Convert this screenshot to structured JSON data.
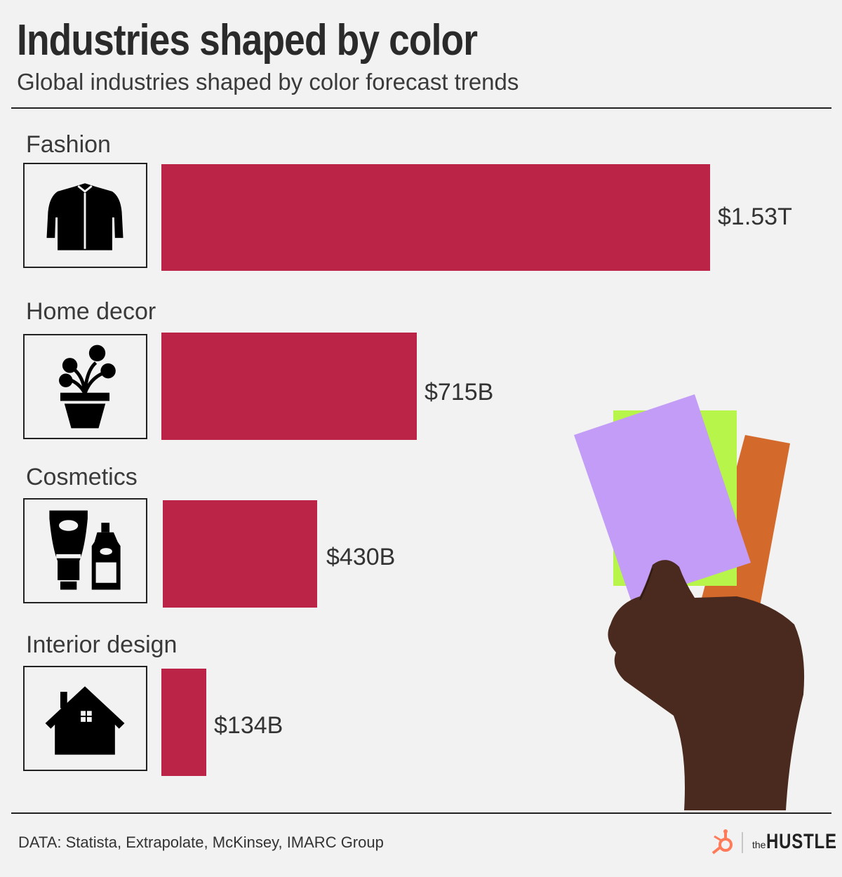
{
  "header": {
    "title": "Industries shaped by color",
    "subtitle": "Global industries shaped by color forecast trends"
  },
  "chart_data": {
    "type": "bar",
    "orientation": "horizontal",
    "title": "Industries shaped by color",
    "subtitle": "Global industries shaped by color forecast trends",
    "unit": "USD",
    "categories": [
      "Fashion",
      "Home decor",
      "Cosmetics",
      "Interior design"
    ],
    "values": [
      1530,
      715,
      430,
      134
    ],
    "value_units": "billions",
    "value_labels": [
      "$1.53T",
      "$715B",
      "$430B",
      "$134B"
    ],
    "icons": [
      "jacket-icon",
      "potted-plant-icon",
      "cosmetics-bottles-icon",
      "house-icon"
    ],
    "xlim": [
      0,
      1530
    ],
    "bar_color": "#bc2447",
    "grid": false
  },
  "footer": {
    "source": "DATA: Statista, Extrapolate, McKinsey, IMARC Group",
    "brand_prefix": "the",
    "brand_name": "HUSTLE"
  },
  "colors": {
    "background": "#f1f2f1",
    "bar": "#bc2447",
    "swatch_purple": "#c39cf7",
    "swatch_green": "#b8f54a",
    "swatch_orange": "#d4692c"
  }
}
